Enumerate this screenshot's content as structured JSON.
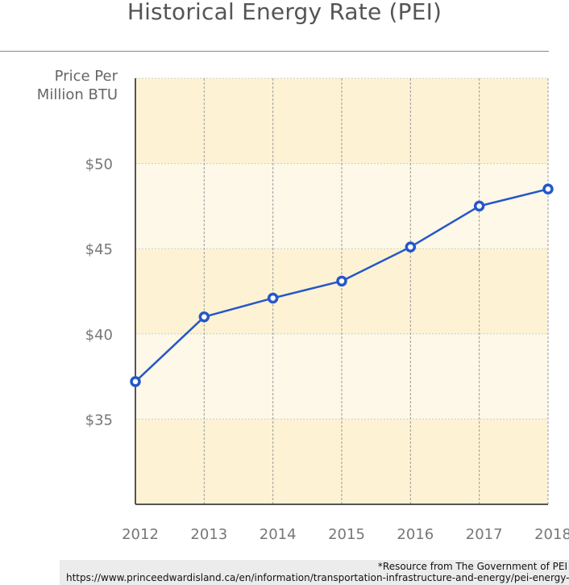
{
  "chart_data": {
    "type": "line",
    "title": "Historical Energy Rate (PEI)",
    "ylabel_lines": [
      "Price Per",
      "Million BTU"
    ],
    "xlabel": "",
    "categories": [
      "2012",
      "2013",
      "2014",
      "2015",
      "2016",
      "2017",
      "2018"
    ],
    "series": [
      {
        "values": [
          37.2,
          41.0,
          42.1,
          43.1,
          45.1,
          47.5,
          48.5
        ]
      }
    ],
    "ylim": [
      30,
      55
    ],
    "yticks": [
      35,
      40,
      45,
      50
    ],
    "ytick_labels": [
      "$35",
      "$40",
      "$45",
      "$50"
    ],
    "grid": true,
    "colors": {
      "line": "#2557c9",
      "band_dark": "#fdf3d4",
      "band_light": "#fdf8e8",
      "grid": "#cccccc"
    }
  },
  "footer": {
    "note": "*Resource from The Government of PEI",
    "url": "https://www.princeedwardisland.ca/en/information/transportation-infrastructure-and-energy/pei-energy-rates"
  }
}
